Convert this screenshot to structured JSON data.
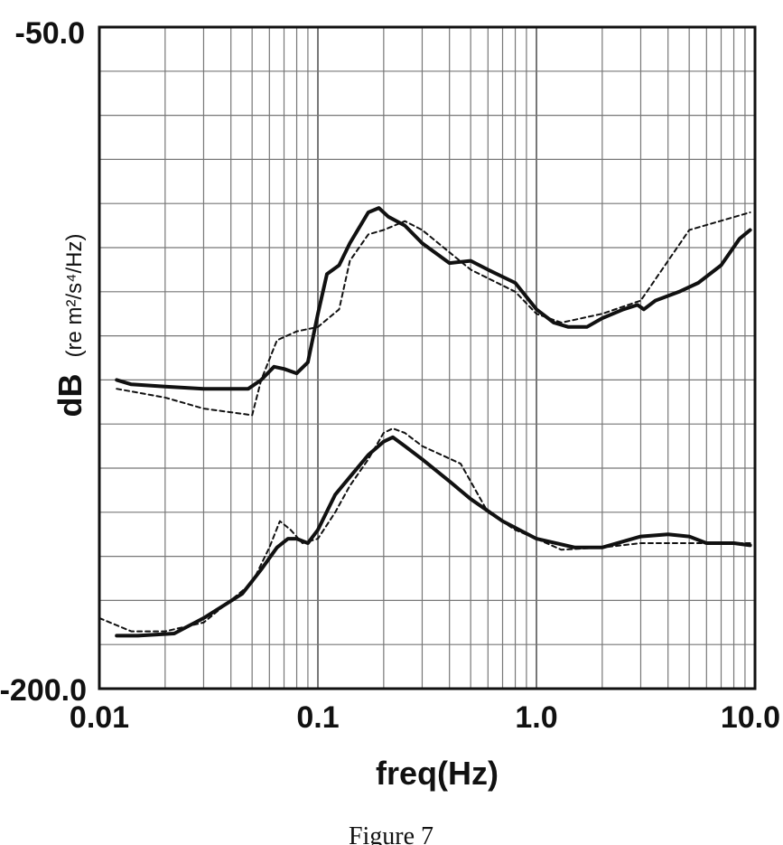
{
  "chart_data": {
    "type": "line",
    "x_scale": "log",
    "xlabel": "freq(Hz)",
    "ylabel_main": "dB",
    "ylabel_unit": "(re m²/s⁴/Hz)",
    "xlim": [
      0.01,
      10.0
    ],
    "ylim": [
      -200.0,
      -50.0
    ],
    "y_ticks": [
      -50.0,
      -200.0
    ],
    "x_tick_labels": [
      "0.01",
      "0.1",
      "1.0",
      "10.0"
    ],
    "y_tick_labels": [
      "-50.0",
      "-200.0"
    ],
    "grid": true,
    "series": [
      {
        "style": "solid",
        "x": [
          0.012,
          0.014,
          0.02,
          0.03,
          0.048,
          0.055,
          0.063,
          0.07,
          0.08,
          0.09,
          0.1,
          0.11,
          0.125,
          0.14,
          0.17,
          0.19,
          0.21,
          0.25,
          0.3,
          0.4,
          0.5,
          0.6,
          0.8,
          1.0,
          1.2,
          1.4,
          1.7,
          2.0,
          2.5,
          2.9,
          3.1,
          3.5,
          4.5,
          5.5,
          7.0,
          8.5,
          9.5
        ],
        "y": [
          -130.0,
          -131.0,
          -131.5,
          -132.0,
          -132.0,
          -130.0,
          -127.0,
          -127.5,
          -128.5,
          -126.0,
          -115.0,
          -106.0,
          -104.0,
          -99.0,
          -92.0,
          -91.0,
          -93.0,
          -95.0,
          -99.0,
          -103.5,
          -103.0,
          -105.0,
          -108.0,
          -114.0,
          -117.0,
          -118.0,
          -118.0,
          -116.0,
          -114.0,
          -113.0,
          -114.0,
          -112.0,
          -110.0,
          -108.0,
          -104.0,
          -98.0,
          -96.0
        ]
      },
      {
        "style": "dashed",
        "x": [
          0.012,
          0.02,
          0.03,
          0.05,
          0.055,
          0.065,
          0.08,
          0.1,
          0.125,
          0.14,
          0.17,
          0.2,
          0.25,
          0.3,
          0.5,
          0.8,
          1.0,
          1.3,
          2.0,
          3.0,
          5.0,
          9.5
        ],
        "y": [
          -132.0,
          -134.0,
          -136.5,
          -138.0,
          -130.0,
          -121.0,
          -119.0,
          -118.0,
          -114.0,
          -103.0,
          -97.0,
          -96.0,
          -94.0,
          -96.0,
          -105.0,
          -110.0,
          -115.0,
          -117.0,
          -115.0,
          -112.0,
          -96.0,
          -92.0
        ]
      },
      {
        "style": "solid",
        "x": [
          0.012,
          0.015,
          0.022,
          0.03,
          0.045,
          0.055,
          0.065,
          0.073,
          0.08,
          0.09,
          0.1,
          0.12,
          0.14,
          0.17,
          0.2,
          0.22,
          0.25,
          0.3,
          0.4,
          0.5,
          0.7,
          1.0,
          1.5,
          2.0,
          3.0,
          4.0,
          5.0,
          6.0,
          7.0,
          8.0,
          9.5
        ],
        "y": [
          -188.0,
          -188.0,
          -187.5,
          -184.0,
          -178.5,
          -173.0,
          -168.0,
          -166.0,
          -166.0,
          -167.0,
          -164.0,
          -156.0,
          -152.0,
          -147.0,
          -144.0,
          -143.0,
          -145.0,
          -148.0,
          -153.0,
          -157.0,
          -162.0,
          -166.0,
          -168.0,
          -168.0,
          -165.5,
          -165.0,
          -165.5,
          -167.0,
          -167.0,
          -167.0,
          -167.5
        ]
      },
      {
        "style": "dashed",
        "x": [
          0.01,
          0.014,
          0.02,
          0.03,
          0.05,
          0.06,
          0.067,
          0.075,
          0.085,
          0.1,
          0.12,
          0.14,
          0.17,
          0.2,
          0.22,
          0.25,
          0.3,
          0.45,
          0.6,
          0.8,
          1.0,
          1.3,
          2.0,
          3.0,
          5.0,
          9.5
        ],
        "y": [
          -184.0,
          -187.0,
          -187.0,
          -185.0,
          -176.0,
          -168.0,
          -162.0,
          -164.0,
          -167.0,
          -166.0,
          -160.0,
          -154.0,
          -148.0,
          -142.0,
          -141.0,
          -142.0,
          -145.0,
          -149.0,
          -160.0,
          -164.0,
          -166.0,
          -168.5,
          -168.0,
          -167.0,
          -167.0,
          -167.0
        ]
      }
    ]
  },
  "caption": "Figure 7"
}
